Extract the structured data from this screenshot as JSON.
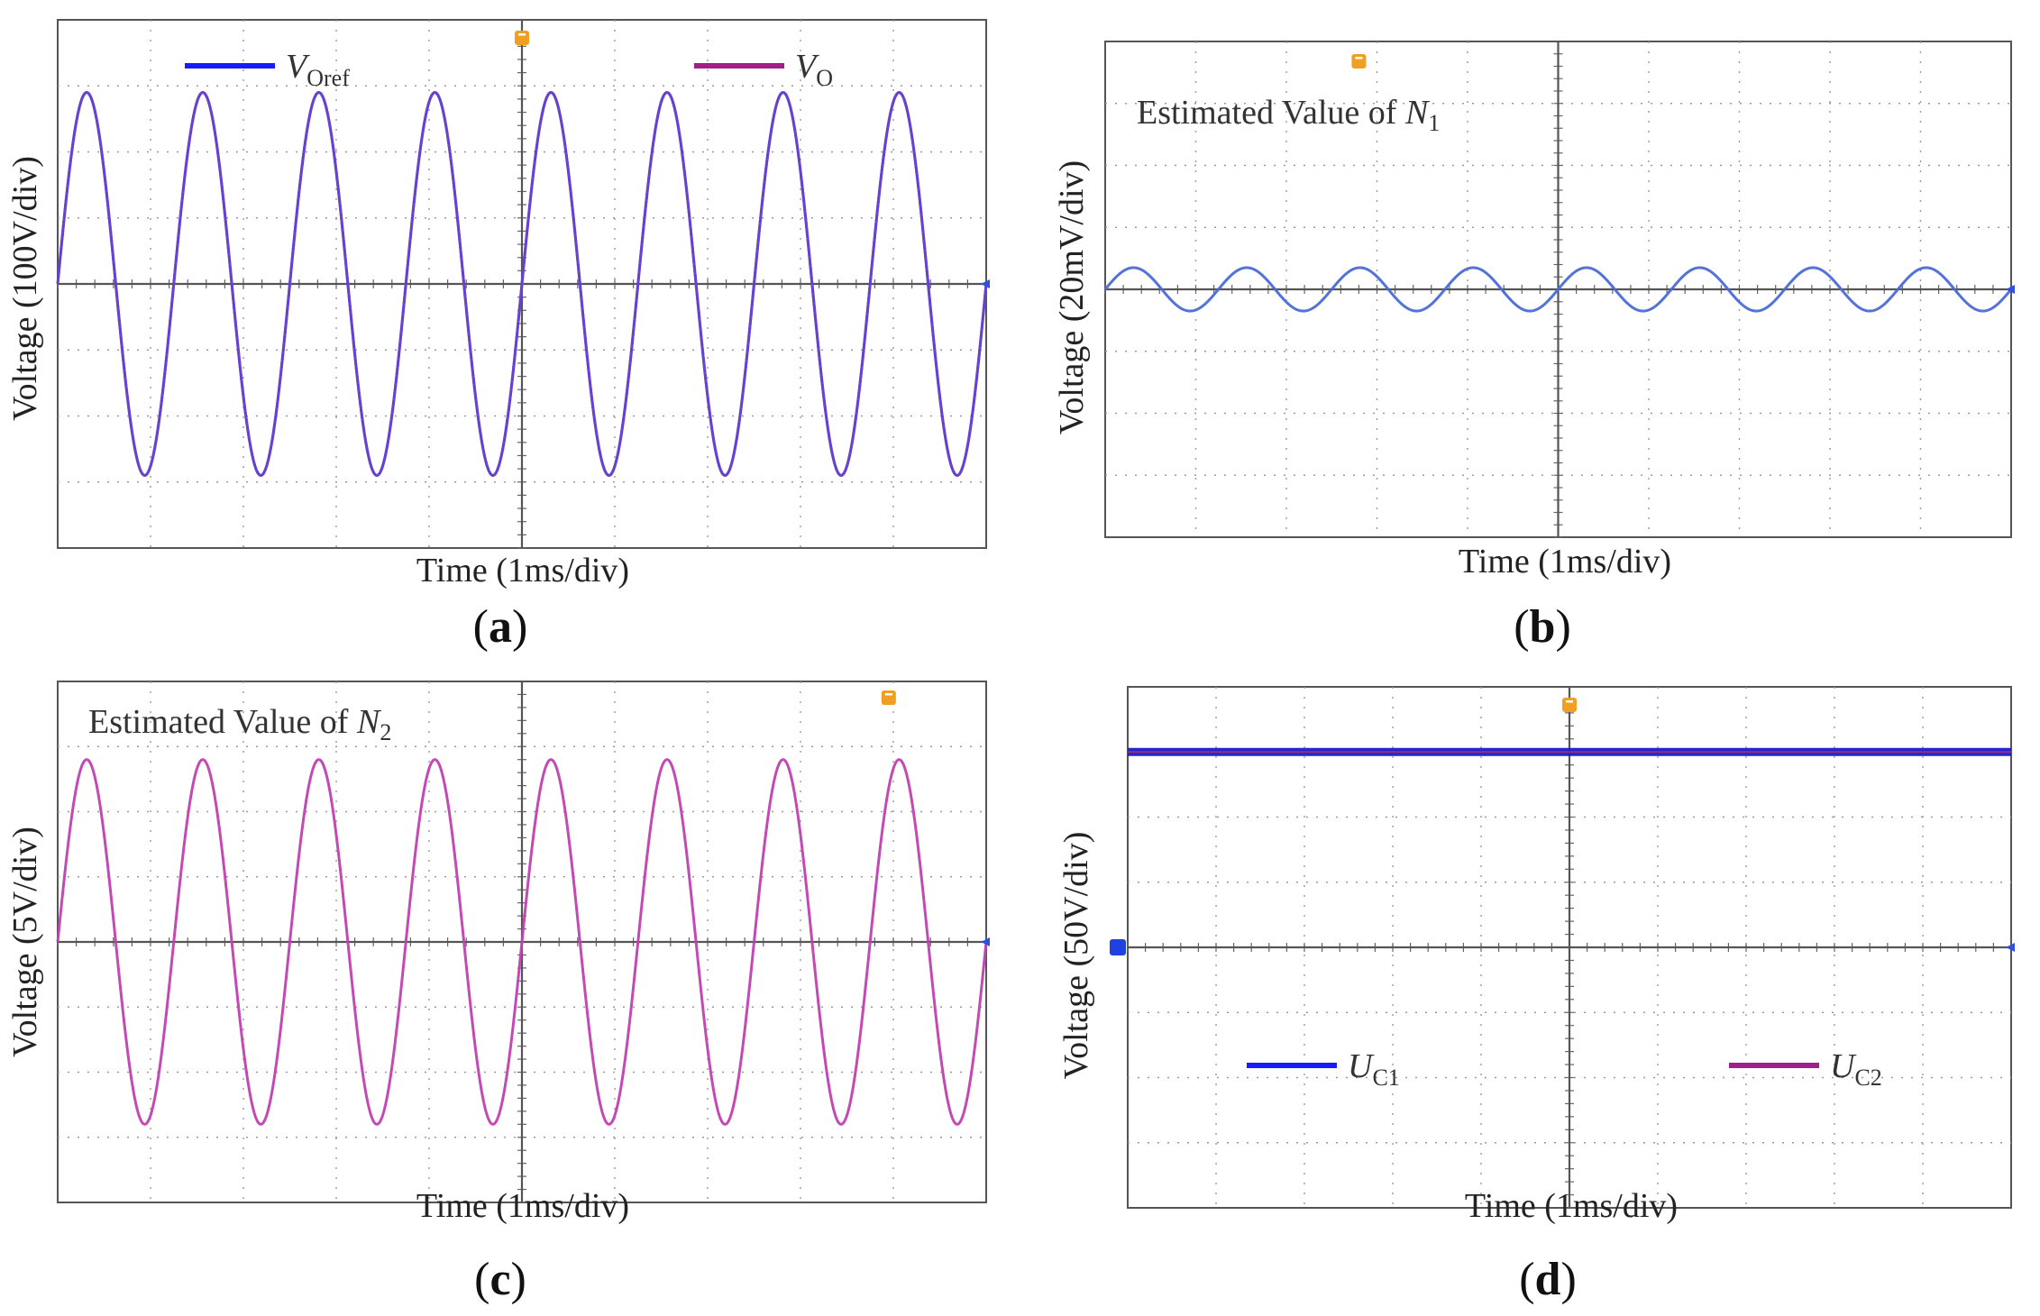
{
  "panels": [
    {
      "id": "a",
      "label_open": "(",
      "label_letter": "a",
      "label_close": ")",
      "xlabel": "Time (1ms/div)",
      "ylabel": "Voltage (100V/div)",
      "annotation": null,
      "legend": [
        {
          "main": "V",
          "sub": "Oref",
          "color": "#1a1aff"
        },
        {
          "main": "V",
          "sub": "O",
          "color": "#a0208a"
        }
      ]
    },
    {
      "id": "b",
      "label_open": "(",
      "label_letter": "b",
      "label_close": ")",
      "xlabel": "Time (1ms/div)",
      "ylabel": "Voltage (20mV/div)",
      "annotation": {
        "main": "Estimated Value of N",
        "sub": "1"
      },
      "legend": []
    },
    {
      "id": "c",
      "label_open": "(",
      "label_letter": "c",
      "label_close": ")",
      "xlabel": "Time (1ms/div)",
      "ylabel": "Voltage (5V/div)",
      "annotation": {
        "main": "Estimated Value of N",
        "sub": "2"
      },
      "legend": []
    },
    {
      "id": "d",
      "label_open": "(",
      "label_letter": "d",
      "label_close": ")",
      "xlabel": "Time (1ms/div)",
      "ylabel": "Voltage (50V/div)",
      "annotation": null,
      "legend": [
        {
          "main": "U",
          "sub": "C1",
          "color": "#1a1aff"
        },
        {
          "main": "U",
          "sub": "C2",
          "color": "#a0208a"
        }
      ]
    }
  ],
  "chart_data": [
    {
      "panel": "a",
      "type": "line",
      "xlabel": "Time (1ms/div)",
      "ylabel": "Voltage (100V/div)",
      "x_unit": "div",
      "y_unit": "div",
      "xlim": [
        -5,
        5
      ],
      "ylim": [
        -4,
        4
      ],
      "grid": true,
      "legend_position": "top",
      "series": [
        {
          "name": "VOref",
          "color": "#5050e0",
          "amplitude_div": 2.9,
          "period_div": 1.25,
          "phase_div": 0,
          "offset_div": 0
        },
        {
          "name": "VO",
          "color": "#6a40d0",
          "amplitude_div": 2.9,
          "period_div": 1.25,
          "phase_div": 0,
          "offset_div": 0
        }
      ]
    },
    {
      "panel": "b",
      "type": "line",
      "xlabel": "Time (1ms/div)",
      "ylabel": "Voltage (20mV/div)",
      "x_unit": "div",
      "y_unit": "div",
      "xlim": [
        -5,
        5
      ],
      "ylim": [
        -4,
        4
      ],
      "grid": true,
      "series": [
        {
          "name": "",
          "color": "#4a6ad8",
          "amplitude_div": 0.35,
          "period_div": 1.25,
          "phase_div": 0,
          "offset_div": 0
        }
      ]
    },
    {
      "panel": "c",
      "type": "line",
      "xlabel": "Time (1ms/div)",
      "ylabel": "Voltage (5V/div)",
      "x_unit": "div",
      "y_unit": "div",
      "xlim": [
        -5,
        5
      ],
      "ylim": [
        -4,
        4
      ],
      "grid": true,
      "series": [
        {
          "name": "",
          "color": "#c040b0",
          "amplitude_div": 2.8,
          "period_div": 1.25,
          "phase_div": 0,
          "offset_div": 0
        }
      ]
    },
    {
      "panel": "d",
      "type": "line",
      "xlabel": "Time (1ms/div)",
      "ylabel": "Voltage (50V/div)",
      "x_unit": "div",
      "y_unit": "div",
      "xlim": [
        -5,
        5
      ],
      "ylim": [
        -4,
        4
      ],
      "grid": true,
      "legend_position": "bottom",
      "series": [
        {
          "name": "UC1",
          "color": "#1a1acc",
          "amplitude_div": 0,
          "period_div": 1.25,
          "phase_div": 0,
          "offset_div": 3.0
        },
        {
          "name": "UC2",
          "color": "#c03060",
          "amplitude_div": 0,
          "period_div": 1.25,
          "phase_div": 0,
          "offset_div": 3.0
        }
      ]
    }
  ]
}
